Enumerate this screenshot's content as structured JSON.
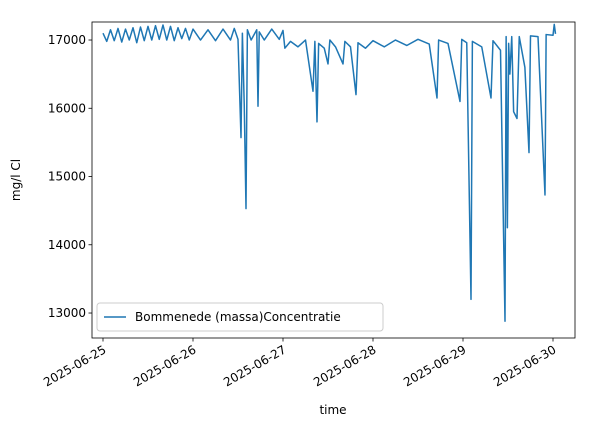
{
  "chart_data": {
    "type": "line",
    "x_label": "time",
    "y_label": "mg/l Cl",
    "xlim": [
      "2025-06-24T21:04",
      "2025-06-30T05:52"
    ],
    "xticks": [
      "2025-06-25",
      "2025-06-26",
      "2025-06-27",
      "2025-06-28",
      "2025-06-29",
      "2025-06-30"
    ],
    "ylim": [
      12634,
      17264
    ],
    "yticks": [
      13000,
      14000,
      15000,
      16000,
      17000
    ],
    "grid": false,
    "legend": "lower left",
    "series": [
      {
        "name": "Bommenede (massa)Concentratie",
        "color": "#1f77b4",
        "x": [
          "2025-06-25T00:00",
          "2025-06-25T01:00",
          "2025-06-25T02:00",
          "2025-06-25T03:00",
          "2025-06-25T04:00",
          "2025-06-25T05:00",
          "2025-06-25T06:00",
          "2025-06-25T07:00",
          "2025-06-25T08:00",
          "2025-06-25T09:00",
          "2025-06-25T10:00",
          "2025-06-25T11:00",
          "2025-06-25T12:00",
          "2025-06-25T13:00",
          "2025-06-25T14:00",
          "2025-06-25T15:00",
          "2025-06-25T16:00",
          "2025-06-25T17:00",
          "2025-06-25T18:00",
          "2025-06-25T19:00",
          "2025-06-25T20:00",
          "2025-06-25T21:00",
          "2025-06-25T22:00",
          "2025-06-25T23:00",
          "2025-06-26T00:00",
          "2025-06-26T02:00",
          "2025-06-26T04:00",
          "2025-06-26T06:00",
          "2025-06-26T08:00",
          "2025-06-26T10:00",
          "2025-06-26T11:00",
          "2025-06-26T12:00",
          "2025-06-26T12:48",
          "2025-06-26T13:10",
          "2025-06-26T13:40",
          "2025-06-26T14:08",
          "2025-06-26T14:30",
          "2025-06-26T15:30",
          "2025-06-26T17:00",
          "2025-06-26T17:20",
          "2025-06-26T17:40",
          "2025-06-26T19:00",
          "2025-06-26T21:00",
          "2025-06-26T23:00",
          "2025-06-27T00:00",
          "2025-06-27T00:30",
          "2025-06-27T02:00",
          "2025-06-27T04:00",
          "2025-06-27T06:00",
          "2025-06-27T08:00",
          "2025-06-27T08:30",
          "2025-06-27T09:04",
          "2025-06-27T09:30",
          "2025-06-27T11:00",
          "2025-06-27T12:00",
          "2025-06-27T12:30",
          "2025-06-27T14:00",
          "2025-06-27T16:00",
          "2025-06-27T16:30",
          "2025-06-27T18:00",
          "2025-06-27T19:28",
          "2025-06-27T20:00",
          "2025-06-27T22:00",
          "2025-06-28T00:00",
          "2025-06-28T03:00",
          "2025-06-28T06:00",
          "2025-06-28T09:00",
          "2025-06-28T12:00",
          "2025-06-28T15:00",
          "2025-06-28T17:04",
          "2025-06-28T17:30",
          "2025-06-28T20:00",
          "2025-06-28T23:12",
          "2025-06-28T23:40",
          "2025-06-29T01:00",
          "2025-06-29T02:08",
          "2025-06-29T02:30",
          "2025-06-29T05:00",
          "2025-06-29T07:28",
          "2025-06-29T08:00",
          "2025-06-29T10:00",
          "2025-06-29T11:12",
          "2025-06-29T11:30",
          "2025-06-29T11:50",
          "2025-06-29T12:10",
          "2025-06-29T12:30",
          "2025-06-29T13:00",
          "2025-06-29T13:30",
          "2025-06-29T14:24",
          "2025-06-29T15:00",
          "2025-06-29T16:30",
          "2025-06-29T17:36",
          "2025-06-29T18:00",
          "2025-06-29T20:00",
          "2025-06-29T21:52",
          "2025-06-29T22:10",
          "2025-06-30T00:00",
          "2025-06-30T00:20",
          "2025-06-30T00:40"
        ],
        "values": [
          17100,
          16980,
          17150,
          16990,
          17170,
          16970,
          17160,
          17000,
          17180,
          16960,
          17190,
          16990,
          17200,
          17000,
          17210,
          17010,
          17220,
          17000,
          17200,
          16990,
          17180,
          17020,
          17170,
          17000,
          17160,
          17000,
          17150,
          16990,
          17160,
          17000,
          17170,
          17010,
          15570,
          17100,
          16050,
          14530,
          17150,
          17000,
          17150,
          16030,
          17120,
          17000,
          17160,
          17010,
          17140,
          16880,
          16980,
          16900,
          17000,
          16250,
          16980,
          15800,
          16950,
          16880,
          16650,
          17000,
          16900,
          16650,
          16980,
          16900,
          16200,
          16960,
          16880,
          16990,
          16900,
          17000,
          16920,
          17010,
          16940,
          16150,
          17000,
          16950,
          16100,
          17010,
          16960,
          13200,
          16980,
          16900,
          16150,
          16990,
          16850,
          12880,
          17050,
          14250,
          16950,
          16500,
          17050,
          15950,
          15850,
          17050,
          16600,
          15350,
          17060,
          17050,
          14730,
          17080,
          17070,
          17230,
          17090
        ]
      }
    ]
  }
}
